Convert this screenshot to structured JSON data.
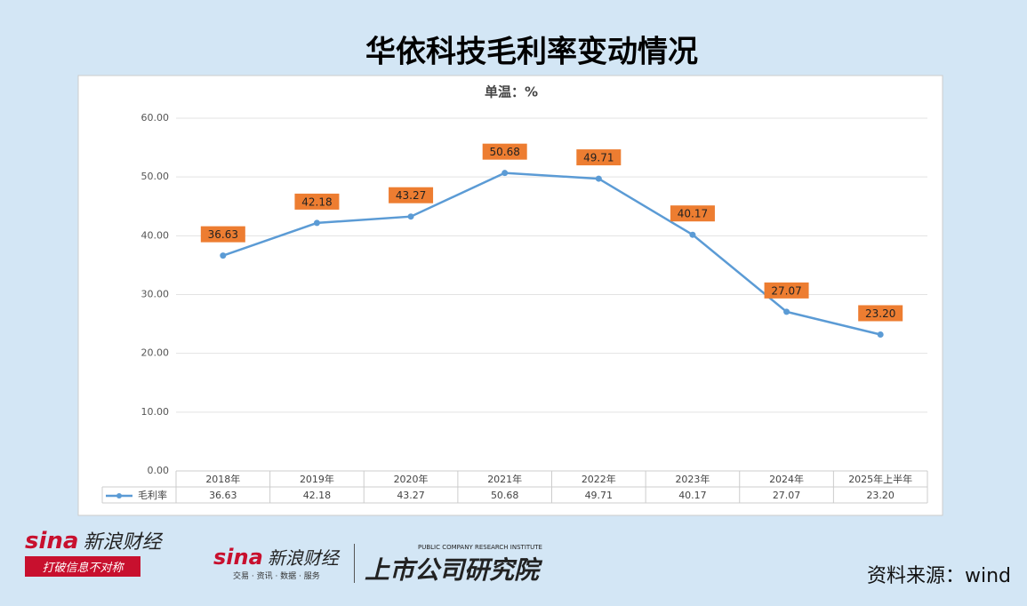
{
  "chart_data": {
    "type": "line",
    "title": "华依科技毛利率变动情况",
    "subtitle": "单温：%",
    "categories": [
      "2018年",
      "2019年",
      "2020年",
      "2021年",
      "2022年",
      "2023年",
      "2024年",
      "2025年上半年"
    ],
    "series": [
      {
        "name": "毛利率",
        "color": "#5b9bd5",
        "values": [
          36.63,
          42.18,
          43.27,
          50.68,
          49.71,
          40.17,
          27.07,
          23.2
        ],
        "value_labels": [
          "36.63",
          "42.18",
          "43.27",
          "50.68",
          "49.71",
          "40.17",
          "27.07",
          "23.20"
        ]
      }
    ],
    "label_color": "#ed7d31",
    "ylim": [
      0,
      60
    ],
    "yticks": [
      {
        "value": 0,
        "label": "0.00"
      },
      {
        "value": 10,
        "label": "10.00"
      },
      {
        "value": 20,
        "label": "20.00"
      },
      {
        "value": 30,
        "label": "30.00"
      },
      {
        "value": 40,
        "label": "40.00"
      },
      {
        "value": 50,
        "label": "50.00"
      },
      {
        "value": 60,
        "label": "60.00"
      }
    ],
    "grid": true,
    "data_table": true
  },
  "footer": {
    "source": "资料来源：wind",
    "logo1_brand": "sina",
    "logo1_name": "新浪财经",
    "logo1_slogan": "打破信息不对称",
    "logo2_brand": "sina",
    "logo2_name": "新浪财经",
    "logo2_services": "交易 · 资讯 · 数据 · 服务",
    "institute_en": "PUBLIC COMPANY RESEARCH INSTITUTE",
    "institute": "上市公司研究院"
  }
}
